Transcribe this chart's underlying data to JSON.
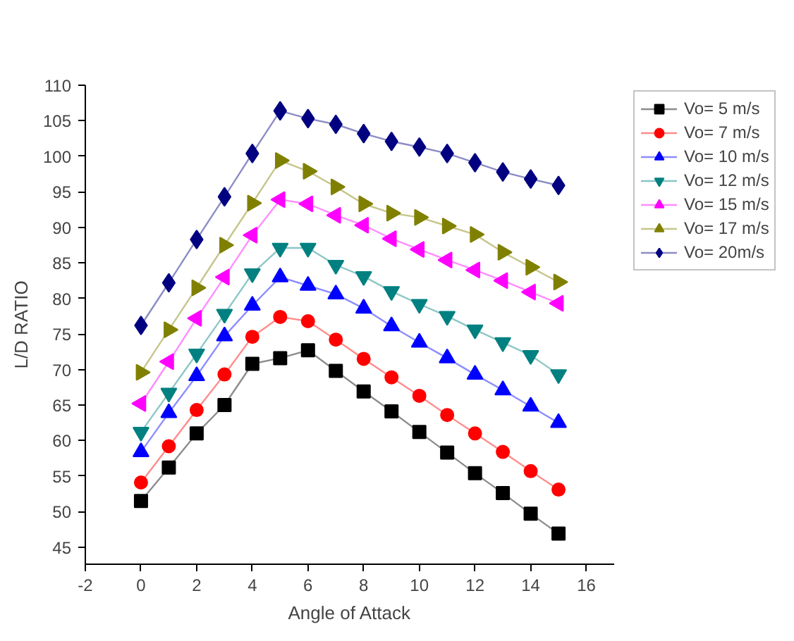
{
  "chart_data": {
    "type": "line",
    "xlabel": "Angle of Attack",
    "ylabel": "L/D RATIO",
    "x": [
      0,
      1,
      2,
      3,
      4,
      5,
      6,
      7,
      8,
      9,
      10,
      11,
      12,
      13,
      14,
      15
    ],
    "xlim": [
      -2,
      17
    ],
    "xticks": [
      -2,
      0,
      2,
      4,
      6,
      8,
      10,
      12,
      14,
      16
    ],
    "ylim": [
      42.6,
      110
    ],
    "yticks": [
      45,
      50,
      55,
      60,
      65,
      70,
      75,
      80,
      85,
      90,
      95,
      100,
      105,
      110
    ],
    "grid": false,
    "legend": "top right",
    "line_style": "solid",
    "series": [
      {
        "name": "Vo= 5 m/s",
        "color": "#000000",
        "marker": "square",
        "values": [
          51.5,
          56.2,
          61,
          65,
          70.8,
          71.6,
          72.7,
          69.8,
          66.9,
          64.1,
          61.2,
          58.3,
          55.4,
          52.6,
          49.7,
          46.9
        ]
      },
      {
        "name": "Vo= 7 m/s",
        "color": "#ff0000",
        "marker": "circle",
        "values": [
          54.1,
          59.2,
          64.3,
          69.3,
          74.6,
          77.4,
          76.8,
          74.2,
          71.5,
          68.9,
          66.3,
          63.6,
          61,
          58.4,
          55.7,
          53.1
        ]
      },
      {
        "name": "Vo= 10 m/s",
        "color": "#0000ff",
        "marker": "triangle",
        "values": [
          58.4,
          63.9,
          69.1,
          74.7,
          79,
          83,
          81.8,
          80.6,
          78.6,
          76.1,
          73.8,
          71.6,
          69.3,
          67.1,
          64.8,
          62.5
        ]
      },
      {
        "name": "Vo= 12 m/s",
        "color": "#008080",
        "marker": "triangle_down",
        "values": [
          61.2,
          66.7,
          72.2,
          77.8,
          83.5,
          87.1,
          87.1,
          84.7,
          83.1,
          81,
          79.2,
          77.5,
          75.6,
          73.8,
          72,
          69.3
        ]
      },
      {
        "name": "Vo= 15 m/s",
        "color": "#ff00ff",
        "marker": "triangle_left",
        "values": [
          65.2,
          71.1,
          77.2,
          83,
          88.9,
          93.9,
          93.3,
          91.7,
          90.3,
          88.4,
          86.9,
          85.4,
          84,
          82.5,
          80.9,
          79.3
        ]
      },
      {
        "name": "Vo= 17 m/s",
        "color": "#808000",
        "marker": "triangle_right",
        "values": [
          69.6,
          75.6,
          81.5,
          87.5,
          93.4,
          99.4,
          97.9,
          95.7,
          93.3,
          92,
          91.4,
          90.2,
          89,
          86.5,
          84.4,
          82.3
        ]
      },
      {
        "name": "Vo= 20m/s",
        "color": "#000080",
        "marker": "diamond",
        "values": [
          76.2,
          82.2,
          88.3,
          94.3,
          100.4,
          106.4,
          105.3,
          104.5,
          103.2,
          102.1,
          101.3,
          100.4,
          99.1,
          97.8,
          96.8,
          95.9
        ]
      }
    ]
  }
}
